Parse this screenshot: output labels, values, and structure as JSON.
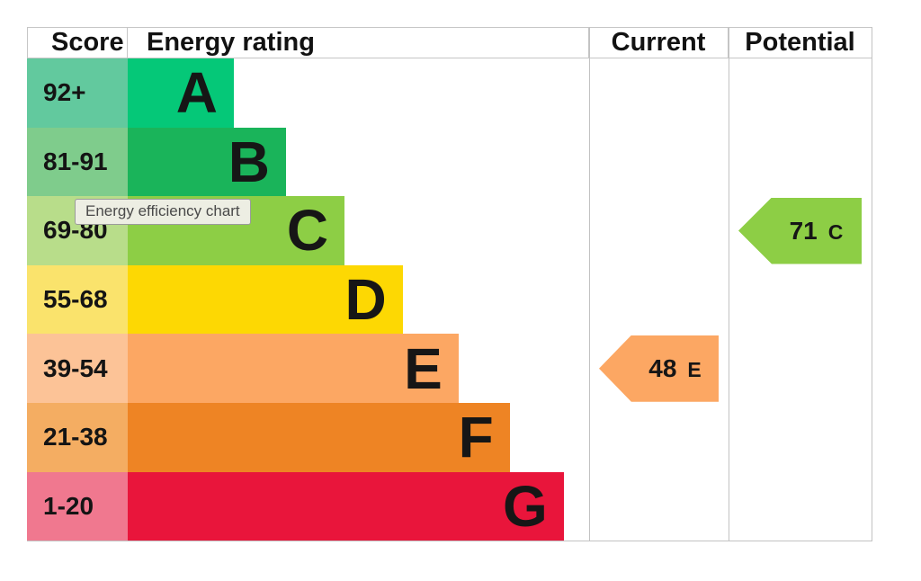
{
  "header": {
    "score": "Score",
    "energy_rating": "Energy rating",
    "current": "Current",
    "potential": "Potential"
  },
  "bands": [
    {
      "score": "92+",
      "letter": "A",
      "bar_color": "#05c878",
      "score_color": "#62c99e",
      "bar_width_pct": 23.0
    },
    {
      "score": "81-91",
      "letter": "B",
      "bar_color": "#1ab45a",
      "score_color": "#7fcc8c",
      "bar_width_pct": 34.3
    },
    {
      "score": "69-80",
      "letter": "C",
      "bar_color": "#8dce45",
      "score_color": "#b8dd8a",
      "bar_width_pct": 47.0
    },
    {
      "score": "55-68",
      "letter": "D",
      "bar_color": "#fdd803",
      "score_color": "#fae36c",
      "bar_width_pct": 59.6
    },
    {
      "score": "39-54",
      "letter": "E",
      "bar_color": "#fca763",
      "score_color": "#fcc397",
      "bar_width_pct": 71.7
    },
    {
      "score": "21-38",
      "letter": "F",
      "bar_color": "#ee8424",
      "score_color": "#f4ad62",
      "bar_width_pct": 82.8
    },
    {
      "score": "1-20",
      "letter": "G",
      "bar_color": "#e9153b",
      "score_color": "#f0788f",
      "bar_width_pct": 94.5
    }
  ],
  "current": {
    "value": "48",
    "letter": "E",
    "color": "#fca763"
  },
  "potential": {
    "value": "71",
    "letter": "C",
    "color": "#8dce45"
  },
  "tooltip": {
    "text": "Energy efficiency chart"
  },
  "chart_data": {
    "type": "bar",
    "title": "Energy efficiency chart",
    "categories": [
      "A",
      "B",
      "C",
      "D",
      "E",
      "F",
      "G"
    ],
    "score_ranges": [
      "92+",
      "81-91",
      "69-80",
      "55-68",
      "39-54",
      "21-38",
      "1-20"
    ],
    "bar_lengths_pct_of_column": [
      23.0,
      34.3,
      47.0,
      59.6,
      71.7,
      82.8,
      94.5
    ],
    "column_headers": [
      "Score",
      "Energy rating",
      "Current",
      "Potential"
    ],
    "current": {
      "score": 48,
      "rating": "E"
    },
    "potential": {
      "score": 71,
      "rating": "C"
    },
    "band_colors": [
      "#05c878",
      "#1ab45a",
      "#8dce45",
      "#fdd803",
      "#fca763",
      "#ee8424",
      "#e9153b"
    ],
    "score_cell_colors": [
      "#62c99e",
      "#7fcc8c",
      "#b8dd8a",
      "#fae36c",
      "#fcc397",
      "#f4ad62",
      "#f0788f"
    ],
    "legend": "none",
    "grid": "off"
  }
}
